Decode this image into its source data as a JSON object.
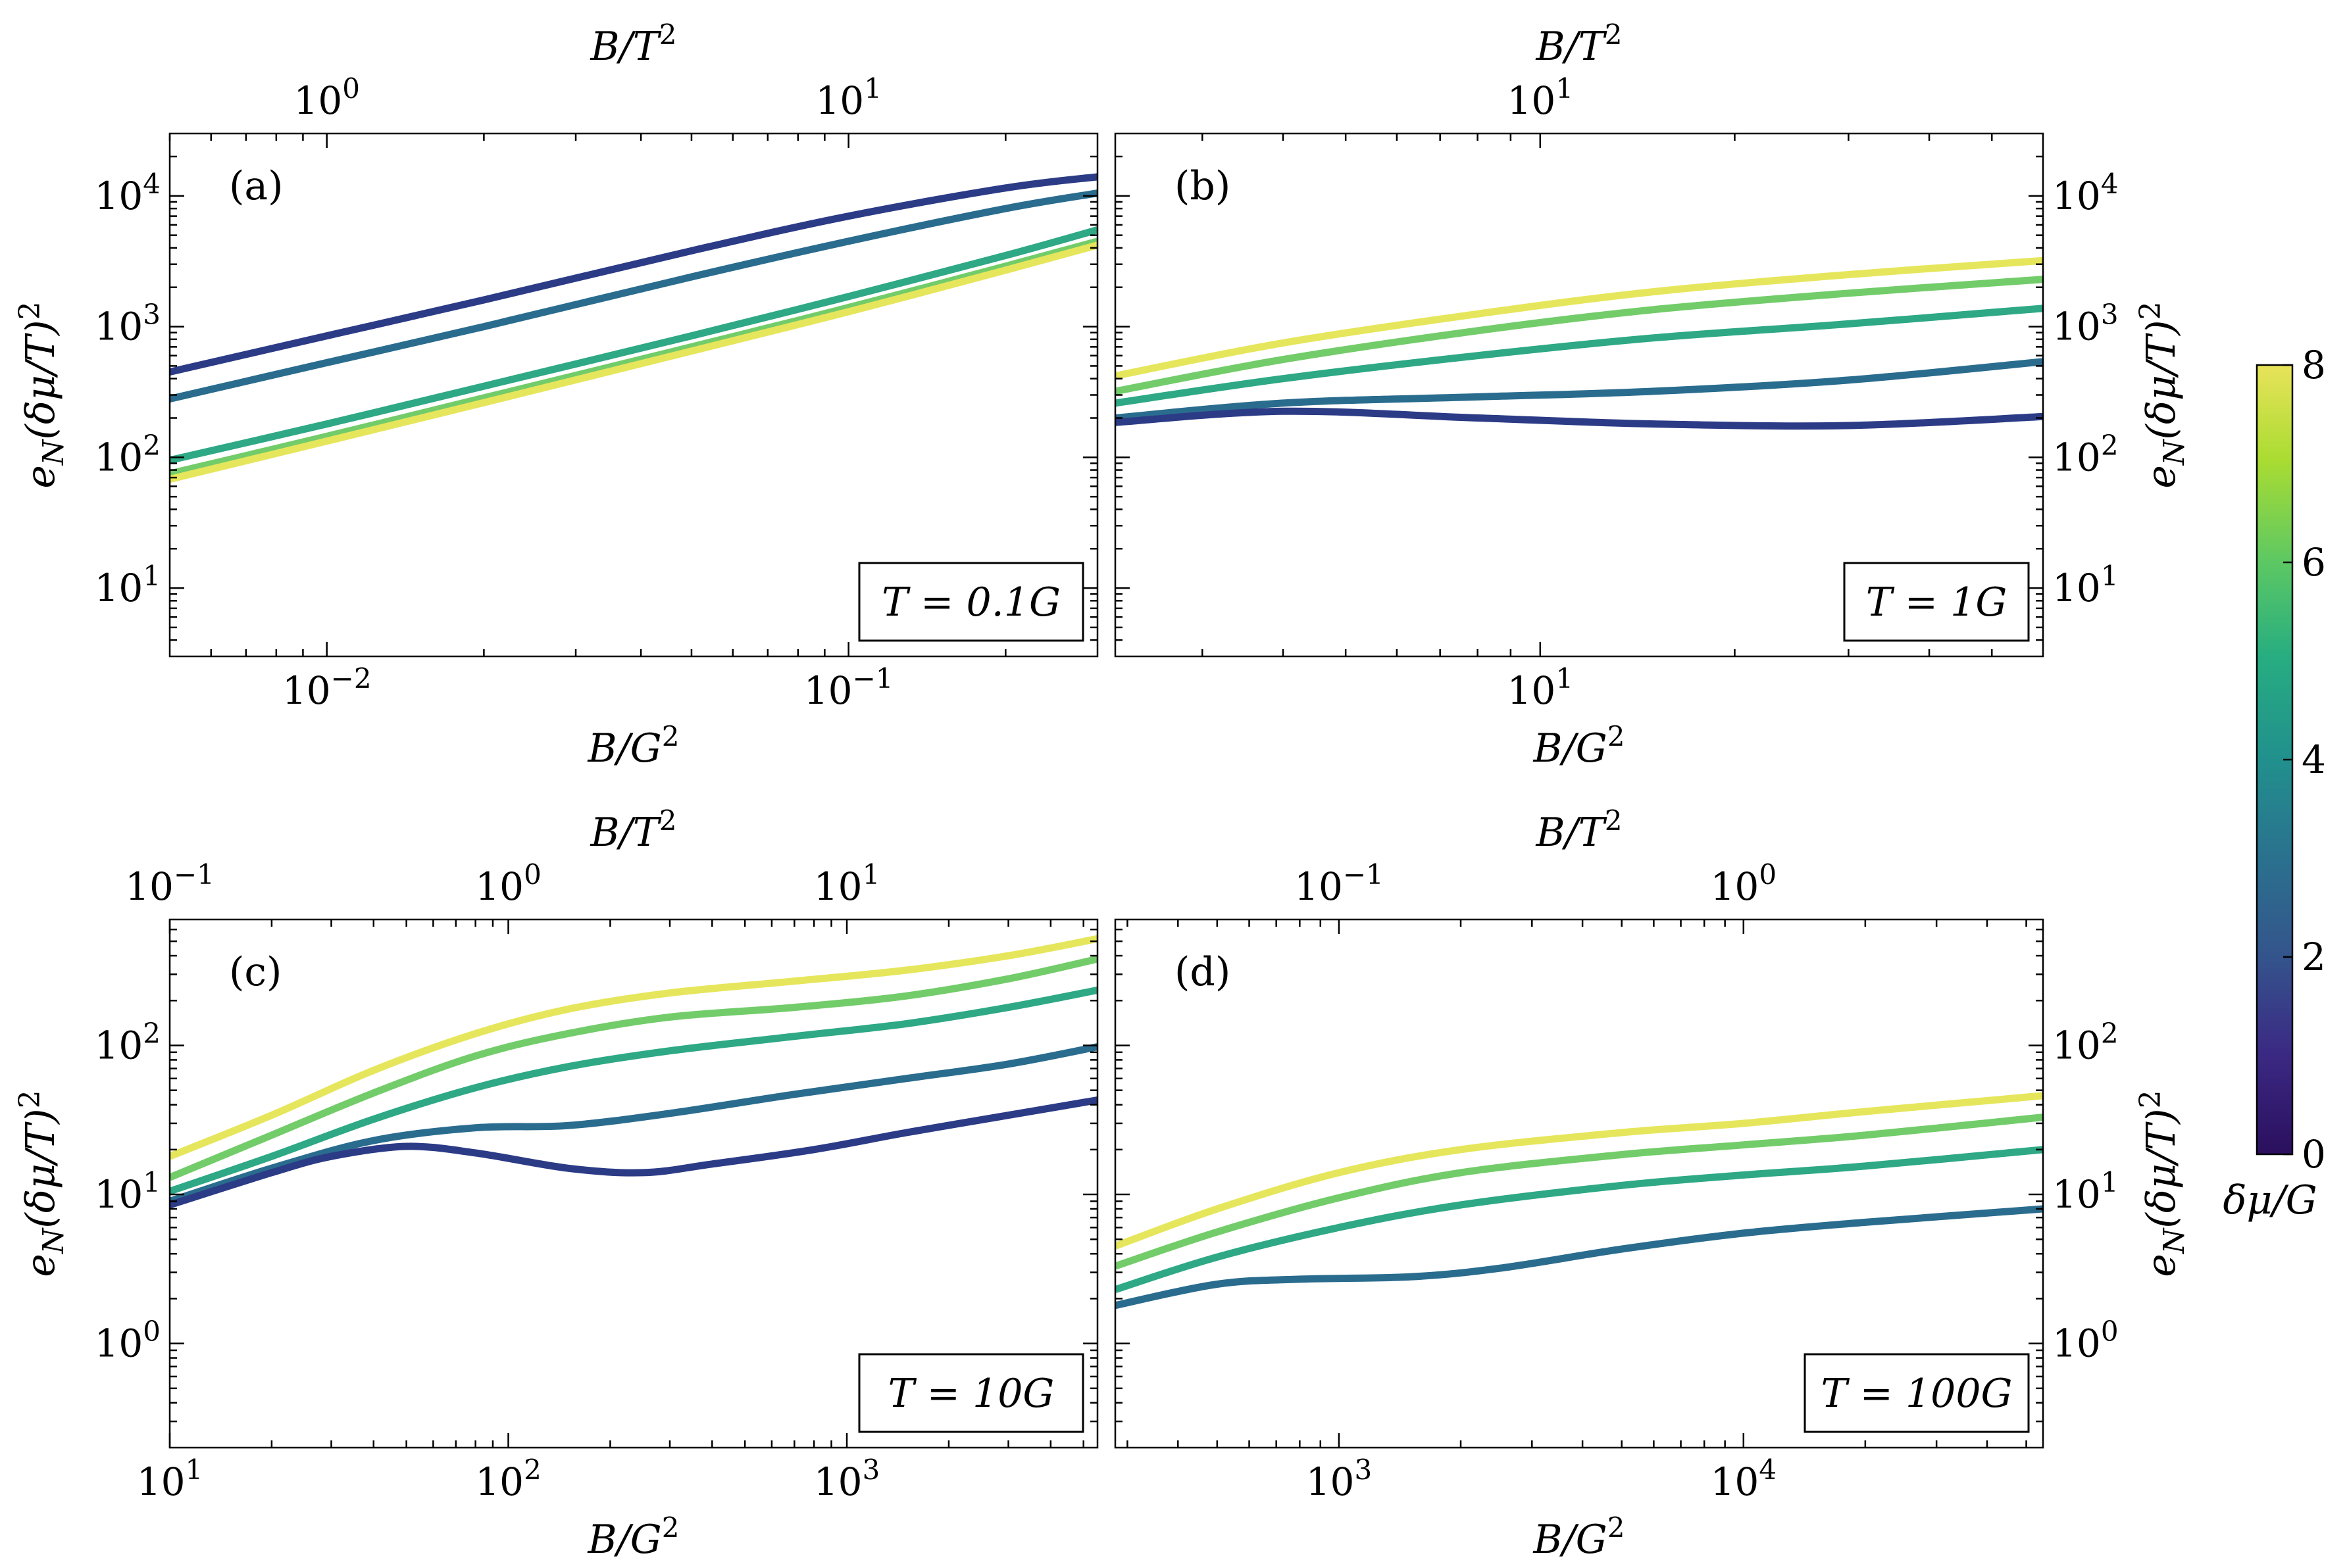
{
  "chart_data": {
    "type": "line",
    "xlabel_bottom": "B/G²",
    "xlabel_top": "B/T²",
    "ylabel": "e_N(δμ/T)²",
    "colorbar": {
      "label": "δμ/G",
      "range": [
        0,
        8
      ],
      "ticks": [
        "0",
        "2",
        "4",
        "6",
        "8"
      ],
      "colormap": "viridis",
      "colors": [
        "#30123b",
        "#440154",
        "#31688e",
        "#35b779",
        "#fde725"
      ]
    },
    "series_colors": {
      "0.5": "#2c3b86",
      "2": "#2a6c8e",
      "4": "#2ea885",
      "6": "#73cc6a",
      "8": "#e6e65c"
    },
    "panels": [
      {
        "id": "a",
        "tag": "(a)",
        "annotation": "T = 0.1G",
        "T_over_G": 0.1,
        "xlim": [
          0.005,
          0.3
        ],
        "ylim": [
          3,
          30000
        ],
        "xticks_bottom": [
          {
            "v": 0.01,
            "base": "10",
            "exp": "−2"
          },
          {
            "v": 0.1,
            "base": "10",
            "exp": "−1"
          }
        ],
        "xticks_top": [
          {
            "v": 1,
            "base": "10",
            "exp": "0"
          },
          {
            "v": 10,
            "base": "10",
            "exp": "1"
          }
        ],
        "yticks": [
          {
            "v": 10,
            "base": "10",
            "exp": "1"
          },
          {
            "v": 100,
            "base": "10",
            "exp": "2"
          },
          {
            "v": 1000,
            "base": "10",
            "exp": "3"
          },
          {
            "v": 10000,
            "base": "10",
            "exp": "4"
          }
        ],
        "y_side": "left",
        "series": [
          {
            "name": "δμ/G≈0.5",
            "color_key": "0.5",
            "x": [
              0.005,
              0.01,
              0.02,
              0.05,
              0.1,
              0.2,
              0.3
            ],
            "y": [
              450,
              850,
              1600,
              3800,
              7000,
              11500,
              14000
            ]
          },
          {
            "name": "δμ/G=2",
            "color_key": "2",
            "x": [
              0.005,
              0.01,
              0.02,
              0.05,
              0.1,
              0.2,
              0.3
            ],
            "y": [
              280,
              530,
              1000,
              2400,
              4500,
              8000,
              10500
            ]
          },
          {
            "name": "δμ/G=4",
            "color_key": "4",
            "x": [
              0.005,
              0.01,
              0.02,
              0.05,
              0.1,
              0.2,
              0.3
            ],
            "y": [
              95,
              180,
              350,
              850,
              1700,
              3500,
              5500
            ]
          },
          {
            "name": "δμ/G=6",
            "color_key": "6",
            "x": [
              0.005,
              0.01,
              0.02,
              0.05,
              0.1,
              0.2,
              0.3
            ],
            "y": [
              75,
              145,
              285,
              700,
              1400,
              2900,
              4500
            ]
          },
          {
            "name": "δμ/G=8",
            "color_key": "8",
            "x": [
              0.005,
              0.01,
              0.02,
              0.05,
              0.1,
              0.2,
              0.3
            ],
            "y": [
              68,
              133,
              262,
              650,
              1300,
              2700,
              4200
            ]
          }
        ]
      },
      {
        "id": "b",
        "tag": "(b)",
        "annotation": "T = 1G",
        "T_over_G": 1,
        "xlim": [
          2.2,
          60
        ],
        "ylim": [
          3,
          30000
        ],
        "xticks_bottom": [
          {
            "v": 10,
            "base": "10",
            "exp": "1"
          }
        ],
        "xticks_top": [
          {
            "v": 10,
            "base": "10",
            "exp": "1"
          }
        ],
        "yticks": [
          {
            "v": 10,
            "base": "10",
            "exp": "1"
          },
          {
            "v": 100,
            "base": "10",
            "exp": "2"
          },
          {
            "v": 1000,
            "base": "10",
            "exp": "3"
          },
          {
            "v": 10000,
            "base": "10",
            "exp": "4"
          }
        ],
        "y_side": "right",
        "series": [
          {
            "name": "δμ/G=8",
            "color_key": "8",
            "x": [
              2.2,
              4,
              8,
              15,
              30,
              60
            ],
            "y": [
              420,
              750,
              1250,
              1850,
              2500,
              3200
            ]
          },
          {
            "name": "δμ/G=6",
            "color_key": "6",
            "x": [
              2.2,
              4,
              8,
              15,
              30,
              60
            ],
            "y": [
              320,
              560,
              930,
              1350,
              1800,
              2300
            ]
          },
          {
            "name": "δμ/G=4",
            "color_key": "4",
            "x": [
              2.2,
              4,
              8,
              15,
              30,
              60
            ],
            "y": [
              260,
              400,
              600,
              820,
              1050,
              1380
            ]
          },
          {
            "name": "δμ/G=2",
            "color_key": "2",
            "x": [
              2.2,
              4,
              8,
              15,
              30,
              60
            ],
            "y": [
              200,
              260,
              290,
              320,
              390,
              540
            ]
          },
          {
            "name": "δμ/G≈0.5",
            "color_key": "0.5",
            "x": [
              2.2,
              4,
              8,
              15,
              30,
              60
            ],
            "y": [
              185,
              225,
              200,
              180,
              175,
              205
            ]
          }
        ]
      },
      {
        "id": "c",
        "tag": "(c)",
        "annotation": "T = 10G",
        "T_over_G": 10,
        "xlim": [
          10,
          5500
        ],
        "ylim": [
          0.2,
          700
        ],
        "xticks_bottom": [
          {
            "v": 10,
            "base": "10",
            "exp": "1"
          },
          {
            "v": 100,
            "base": "10",
            "exp": "2"
          },
          {
            "v": 1000,
            "base": "10",
            "exp": "3"
          }
        ],
        "xticks_top": [
          {
            "v": 0.1,
            "base": "10",
            "exp": "−1"
          },
          {
            "v": 1,
            "base": "10",
            "exp": "0"
          },
          {
            "v": 10,
            "base": "10",
            "exp": "1"
          }
        ],
        "yticks": [
          {
            "v": 1,
            "base": "10",
            "exp": "0"
          },
          {
            "v": 10,
            "base": "10",
            "exp": "1"
          },
          {
            "v": 100,
            "base": "10",
            "exp": "2"
          }
        ],
        "y_side": "left",
        "series": [
          {
            "name": "δμ/G=8",
            "color_key": "8",
            "x": [
              10,
              20,
              40,
              80,
              150,
              300,
              700,
              1500,
              3000,
              5500
            ],
            "y": [
              18,
              34,
              68,
              120,
              175,
              225,
              270,
              320,
              400,
              520
            ]
          },
          {
            "name": "δμ/G=6",
            "color_key": "6",
            "x": [
              10,
              20,
              40,
              80,
              150,
              300,
              700,
              1500,
              3000,
              5500
            ],
            "y": [
              13,
              25,
              48,
              85,
              120,
              155,
              180,
              215,
              280,
              380
            ]
          },
          {
            "name": "δμ/G=4",
            "color_key": "4",
            "x": [
              10,
              20,
              40,
              80,
              150,
              300,
              700,
              1500,
              3000,
              5500
            ],
            "y": [
              10.5,
              18,
              32,
              52,
              72,
              92,
              115,
              140,
              180,
              235
            ]
          },
          {
            "name": "δμ/G=2",
            "color_key": "2",
            "x": [
              10,
              20,
              40,
              80,
              150,
              300,
              700,
              1500,
              3000,
              5500
            ],
            "y": [
              9,
              15,
              23,
              28,
              29,
              35,
              47,
              60,
              75,
              98
            ]
          },
          {
            "name": "δμ/G≈0.5",
            "color_key": "0.5",
            "x": [
              10,
              20,
              30,
              50,
              80,
              150,
              250,
              400,
              800,
              1500,
              3000,
              5500
            ],
            "y": [
              8.5,
              14,
              18,
              21,
              19,
              15,
              14,
              16,
              20,
              26,
              34,
              43
            ]
          }
        ]
      },
      {
        "id": "d",
        "tag": "(d)",
        "annotation": "T = 100G",
        "T_over_G": 100,
        "xlim": [
          280,
          55000
        ],
        "ylim": [
          0.2,
          700
        ],
        "xticks_bottom": [
          {
            "v": 1000,
            "base": "10",
            "exp": "3"
          },
          {
            "v": 10000,
            "base": "10",
            "exp": "4"
          }
        ],
        "xticks_top": [
          {
            "v": 0.1,
            "base": "10",
            "exp": "−1"
          },
          {
            "v": 1,
            "base": "10",
            "exp": "0"
          }
        ],
        "yticks": [
          {
            "v": 1,
            "base": "10",
            "exp": "0"
          },
          {
            "v": 10,
            "base": "10",
            "exp": "1"
          },
          {
            "v": 100,
            "base": "10",
            "exp": "2"
          }
        ],
        "y_side": "right",
        "series": [
          {
            "name": "δμ/G=8",
            "color_key": "8",
            "x": [
              280,
              500,
              1000,
              2000,
              5000,
              10000,
              20000,
              55000
            ],
            "y": [
              4.5,
              8,
              14,
              20,
              26,
              30,
              36,
              46
            ]
          },
          {
            "name": "δμ/G=6",
            "color_key": "6",
            "x": [
              280,
              500,
              1000,
              2000,
              5000,
              10000,
              20000,
              55000
            ],
            "y": [
              3.3,
              5.6,
              9.5,
              14,
              18.5,
              21.5,
              25,
              33
            ]
          },
          {
            "name": "δμ/G=4",
            "color_key": "4",
            "x": [
              280,
              500,
              1000,
              2000,
              5000,
              10000,
              20000,
              55000
            ],
            "y": [
              2.3,
              3.8,
              6,
              8.5,
              11.5,
              13.5,
              15.5,
              20
            ]
          },
          {
            "name": "δμ/G=2",
            "color_key": "2",
            "x": [
              280,
              500,
              800,
              1500,
              2500,
              5000,
              10000,
              20000,
              55000
            ],
            "y": [
              1.8,
              2.5,
              2.7,
              2.8,
              3.2,
              4.3,
              5.5,
              6.5,
              8
            ]
          }
        ]
      }
    ]
  }
}
